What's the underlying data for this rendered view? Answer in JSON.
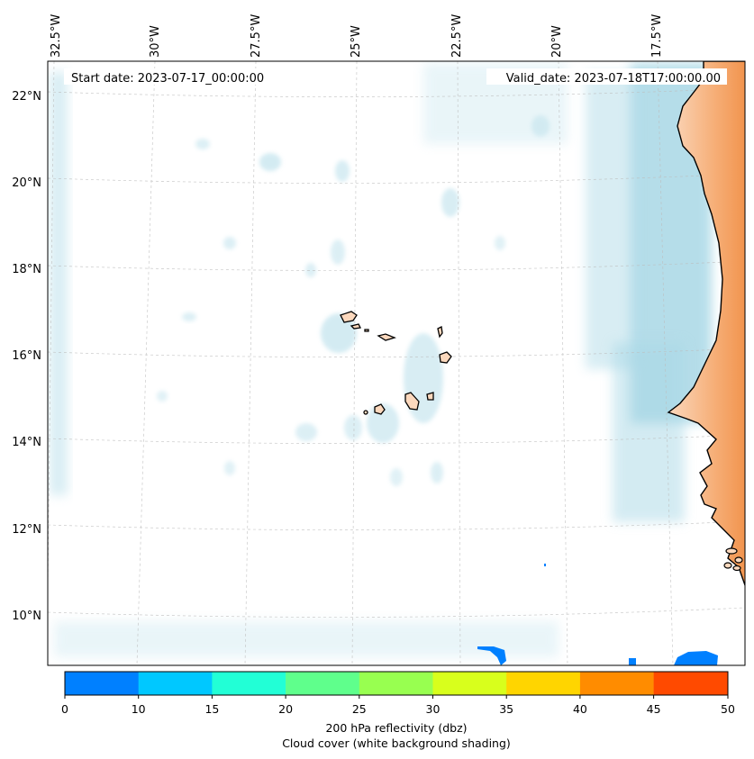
{
  "map": {
    "start_date": "Start date: 2023-07-17_00:00:00",
    "valid_date": "Valid_date: 2023-07-18T17:00:00.00",
    "lon_labels": [
      "32.5°W",
      "30°W",
      "27.5°W",
      "25°W",
      "22.5°W",
      "20°W",
      "17.5°W"
    ],
    "lat_labels": [
      "22°N",
      "20°N",
      "18°N",
      "16°N",
      "14°N",
      "12°N",
      "10°N"
    ]
  },
  "colorbar": {
    "ticks": [
      "0",
      "10",
      "15",
      "20",
      "25",
      "30",
      "35",
      "40",
      "45",
      "50"
    ],
    "colors": [
      "#0080ff",
      "#00c8ff",
      "#22ffd6",
      "#5fff8c",
      "#98ff50",
      "#d8ff1c",
      "#ffd500",
      "#ff8c00",
      "#ff4a00"
    ],
    "label_line1": "200 hPa reflectivity (dbz)",
    "label_line2": "Cloud cover (white background shading)"
  },
  "colors": {
    "cloud": "#a9d8e6",
    "land": "#f5a46a",
    "coast": "#000000",
    "echo": "#0080ff"
  }
}
